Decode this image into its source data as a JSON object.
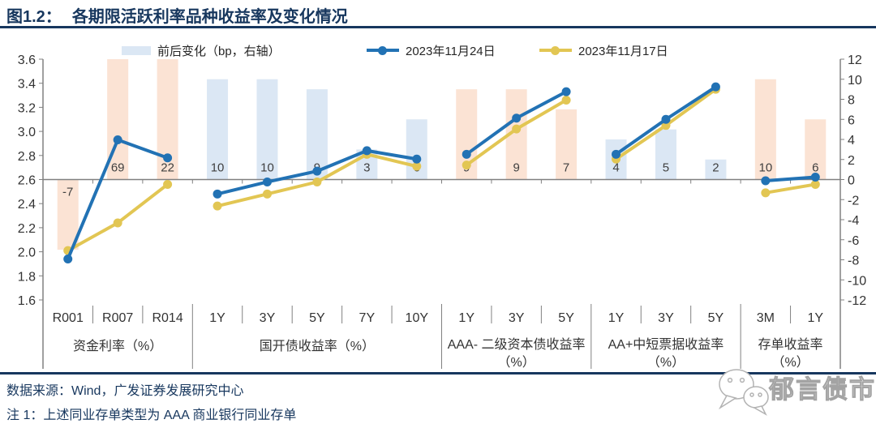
{
  "title": {
    "prefix": "图1.2：",
    "text": "各期限活跃利率品种收益率及变化情况"
  },
  "footer": {
    "source": "数据来源：Wind，广发证券发展研究中心",
    "note": "注 1：上述同业存单类型为 AAA 商业银行同业存单"
  },
  "watermark": {
    "text": "郁言债市",
    "icon": "wechat-chat-bubbles-icon"
  },
  "colors": {
    "bar_peach": "#FBE3D4",
    "bar_blue": "#DBE7F4",
    "line_blue": "#2272B4",
    "line_yellow": "#E2C653",
    "axis_gray": "#808080",
    "text_dark": "#404040",
    "text_black": "#333333",
    "navy": "#17375E"
  },
  "chart_data": {
    "type": "combo-bar-line",
    "bar_series_label": "前后变化（bp，右轴）",
    "left_axis": {
      "min": 1.6,
      "max": 3.6,
      "step": 0.2,
      "baseline_value": 2.6,
      "ticks": [
        "3.6",
        "3.4",
        "3.2",
        "3.0",
        "2.8",
        "2.6",
        "2.4",
        "2.2",
        "2.0",
        "1.8",
        "1.6"
      ]
    },
    "right_axis": {
      "min": -12,
      "max": 12,
      "step": 2,
      "ticks": [
        "12",
        "10",
        "8",
        "6",
        "4",
        "2",
        "0",
        "-2",
        "-4",
        "-6",
        "-8",
        "-10",
        "-12"
      ]
    },
    "series": [
      {
        "name": "2023年11月24日",
        "key": "series_20231124",
        "color": "line_blue"
      },
      {
        "name": "2023年11月17日",
        "key": "series_20231117",
        "color": "line_yellow"
      }
    ],
    "groups": [
      {
        "label": "资金利率（%）",
        "categories": [
          "R001",
          "R007",
          "R014"
        ],
        "bar_bp": [
          -7,
          69,
          22
        ],
        "bar_color": "bar_peach",
        "series_20231124": [
          1.94,
          2.93,
          2.78
        ],
        "series_20231117": [
          2.01,
          2.24,
          2.56
        ]
      },
      {
        "label": "国开债收益率（%）",
        "categories": [
          "1Y",
          "3Y",
          "5Y",
          "7Y",
          "10Y"
        ],
        "bar_bp": [
          10,
          10,
          9,
          3,
          6
        ],
        "bar_color": "bar_blue",
        "series_20231124": [
          2.48,
          2.58,
          2.67,
          2.84,
          2.77
        ],
        "series_20231117": [
          2.38,
          2.48,
          2.58,
          2.81,
          2.71
        ]
      },
      {
        "label": "AAA- 二级资本债收益率（%）",
        "label_lines": [
          "AAA- 二级资本债收益率",
          "（%）"
        ],
        "categories": [
          "1Y",
          "3Y",
          "5Y"
        ],
        "bar_bp": [
          9,
          9,
          7
        ],
        "bar_color": "bar_peach",
        "series_20231124": [
          2.81,
          3.11,
          3.33
        ],
        "series_20231117": [
          2.72,
          3.02,
          3.26
        ]
      },
      {
        "label": "AA+中短票据收益率（%）",
        "label_lines": [
          "AA+中短票据收益率",
          "（%）"
        ],
        "categories": [
          "1Y",
          "3Y",
          "5Y"
        ],
        "bar_bp": [
          4,
          5,
          2
        ],
        "bar_color": "bar_blue",
        "series_20231124": [
          2.81,
          3.1,
          3.37
        ],
        "series_20231117": [
          2.77,
          3.05,
          3.35
        ]
      },
      {
        "label": "存单收益率（%）",
        "label_lines": [
          "存单收益率",
          "（%）"
        ],
        "categories": [
          "3M",
          "1Y"
        ],
        "bar_bp": [
          10,
          6
        ],
        "bar_color": "bar_peach",
        "series_20231124": [
          2.59,
          2.62
        ],
        "series_20231117": [
          2.49,
          2.56
        ]
      }
    ]
  }
}
